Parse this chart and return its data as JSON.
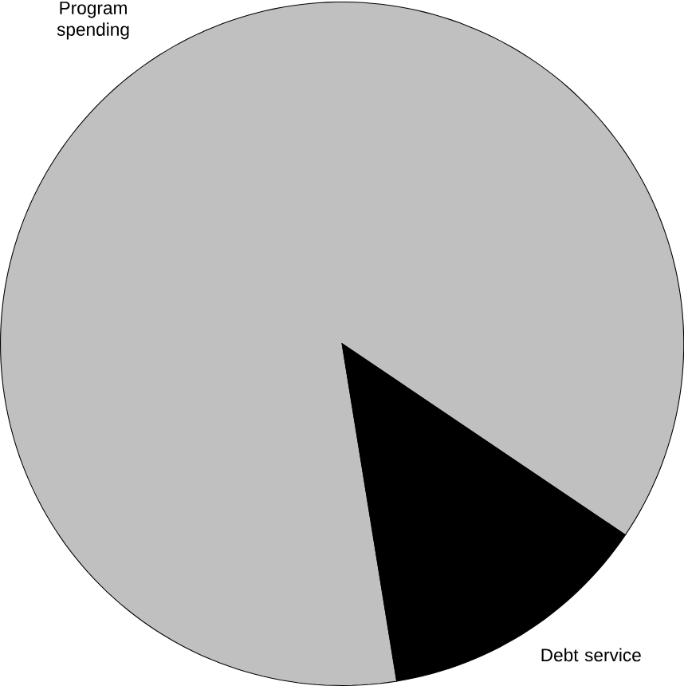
{
  "chart_data": {
    "type": "pie",
    "categories": [
      "Program spending",
      "Debt service"
    ],
    "values": [
      87,
      13
    ],
    "colors": [
      "#c0c0c0",
      "#000000"
    ]
  }
}
